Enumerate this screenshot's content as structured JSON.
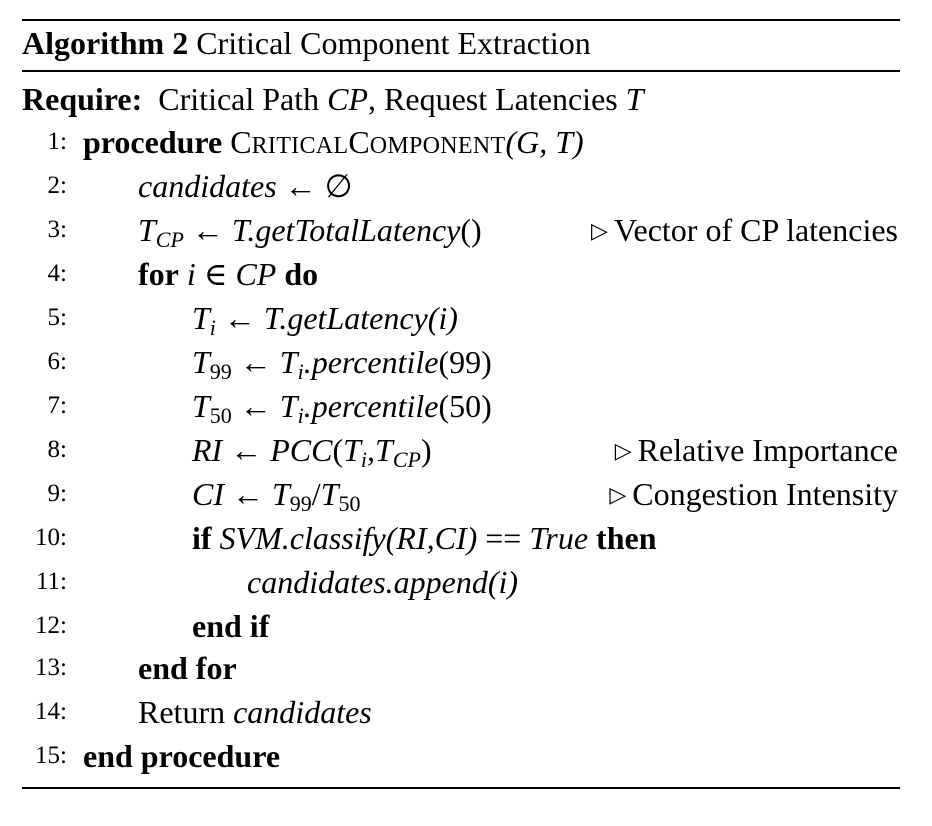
{
  "caption": {
    "label": "Algorithm 2",
    "title": "Critical Component Extraction"
  },
  "require": {
    "label": "Require:",
    "text_1": "Critical Path",
    "cp": "CP",
    "text_2": ", Request Latencies",
    "t": "T"
  },
  "lines": [
    {
      "num": "1:"
    },
    {
      "num": "2:"
    },
    {
      "num": "3:",
      "comment": "Vector of CP latencies"
    },
    {
      "num": "4:"
    },
    {
      "num": "5:"
    },
    {
      "num": "6:"
    },
    {
      "num": "7:"
    },
    {
      "num": "8:",
      "comment": "Relative Importance"
    },
    {
      "num": "9:",
      "comment": "Congestion Intensity"
    },
    {
      "num": "10:"
    },
    {
      "num": "11:"
    },
    {
      "num": "12:"
    },
    {
      "num": "13:"
    },
    {
      "num": "14:"
    },
    {
      "num": "15:"
    }
  ],
  "code": {
    "l1": {
      "kw": "procedure",
      "name_C": "C",
      "name_1": "RITICAL",
      "name_C2": "C",
      "name_2": "OMPONENT",
      "args": "(G, T)"
    },
    "l2": {
      "lhs": "candidates",
      "op": "←",
      "rhs": "∅"
    },
    "l3": {
      "lhs": "T",
      "lhs_sub": "CP",
      "op": "←",
      "rhs": "T.getTotalLatency",
      "paren": "()"
    },
    "l4": {
      "kw_for": "for",
      "cond": "i ∈ CP",
      "kw_do": "do"
    },
    "l5": {
      "lhs": "T",
      "lhs_sub": "i",
      "op": "←",
      "rhs": "T.getLatency",
      "arg": "(i)"
    },
    "l6": {
      "lhs": "T",
      "lhs_sub": "99",
      "op": "←",
      "rhs_t": "T",
      "rhs_sub": "i",
      "rhs": ".percentile",
      "arg": "(99)"
    },
    "l7": {
      "lhs": "T",
      "lhs_sub": "50",
      "op": "←",
      "rhs_t": "T",
      "rhs_sub": "i",
      "rhs": ".percentile",
      "arg": "(50)"
    },
    "l8": {
      "lhs": "RI",
      "op": "←",
      "fn": "PCC",
      "open": "(",
      "a_t": "T",
      "a_sub": "i",
      "sep": ",",
      "b_t": "T",
      "b_sub": "CP",
      "close": ")"
    },
    "l9": {
      "lhs": "CI",
      "op": "←",
      "a_t": "T",
      "a_sub": "99",
      "slash": "/",
      "b_t": "T",
      "b_sub": "50"
    },
    "l10": {
      "kw_if": "if",
      "call": "SVM.classify",
      "args": "(RI,CI)",
      "eq": "==",
      "val": "True",
      "kw_then": "then"
    },
    "l11": {
      "call": "candidates.append",
      "arg": "(i)"
    },
    "l12": {
      "kw": "end if"
    },
    "l13": {
      "kw": "end for"
    },
    "l14": {
      "word": "Return",
      "var": "candidates"
    },
    "l15": {
      "kw": "end procedure"
    }
  }
}
